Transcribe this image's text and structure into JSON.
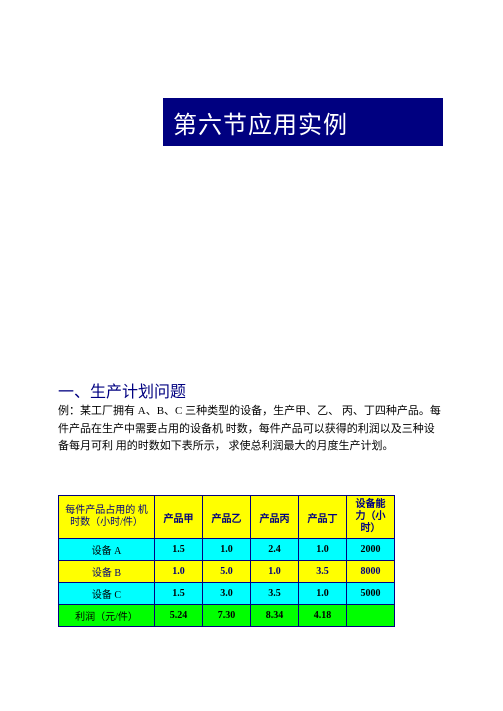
{
  "banner": {
    "title": "第六节应用实例"
  },
  "section": {
    "heading": "一、生产计划问题",
    "paragraph": "例：某工厂拥有 A、B、C 三种类型的设备，生产甲、乙、 丙、丁四种产品。每件产品在生产中需要占用的设备机 时数，每件产品可以获得的利润以及三种设备每月可利 用的时数如下表所示， 求使总利润最大的月度生产计划。"
  },
  "table": {
    "header_left": "每件产品占用的 机时数（小时/件）",
    "col_headers": [
      "产品甲",
      "产品乙",
      "产品丙",
      "产品丁"
    ],
    "capacity_header": "设备能力（小时）",
    "rows": [
      {
        "label": "设备 A",
        "values": [
          "1.5",
          "1.0",
          "2.4",
          "1.0"
        ],
        "capacity": "2000",
        "row_class": "row-cyan"
      },
      {
        "label": "设备 B",
        "values": [
          "1.0",
          "5.0",
          "1.0",
          "3.5"
        ],
        "capacity": "8000",
        "row_class": "row-yellow"
      },
      {
        "label": "设备 C",
        "values": [
          "1.5",
          "3.0",
          "3.5",
          "1.0"
        ],
        "capacity": "5000",
        "row_class": "row-cyan"
      }
    ],
    "profit_label": "利润（元/件）",
    "profit_values": [
      "5.24",
      "7.30",
      "8.34",
      "4.18"
    ],
    "profit_capacity": ""
  },
  "colors": {
    "banner_bg": "#000080",
    "banner_text": "#ffffff",
    "heading_text": "#000080",
    "border": "#000080"
  }
}
